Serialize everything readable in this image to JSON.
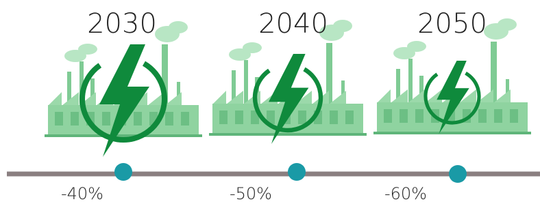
{
  "milestones": [
    {
      "year": "2030",
      "reduction": "-40%"
    },
    {
      "year": "2040",
      "reduction": "-50%"
    },
    {
      "year": "2050",
      "reduction": "-60%"
    }
  ]
}
